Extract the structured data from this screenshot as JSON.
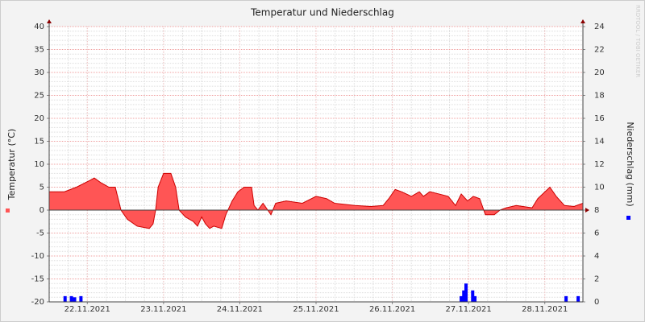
{
  "chart_data": {
    "type": "area_bar",
    "title": "Temperatur und Niederschlag",
    "ylabel": "Temperatur (°C)",
    "y2label": "Niederschlag (mm)",
    "watermark": "RRDTOOL / TOBI OETIKER",
    "xlim": [
      0,
      168
    ],
    "xticks": [
      {
        "value": 12,
        "label": "22.11.2021"
      },
      {
        "value": 36,
        "label": "23.11.2021"
      },
      {
        "value": 60,
        "label": "24.11.2021"
      },
      {
        "value": 84,
        "label": "25.11.2021"
      },
      {
        "value": 108,
        "label": "26.11.2021"
      },
      {
        "value": 132,
        "label": "27.11.2021"
      },
      {
        "value": 156,
        "label": "28.11.2021"
      }
    ],
    "ylim": [
      -20,
      40
    ],
    "yticks": [
      -20,
      -15,
      -10,
      -5,
      0,
      5,
      10,
      15,
      20,
      25,
      30,
      35,
      40
    ],
    "y2lim": [
      0,
      24
    ],
    "y2ticks": [
      0,
      2,
      4,
      6,
      8,
      10,
      12,
      14,
      16,
      18,
      20,
      22,
      24
    ],
    "grid": true,
    "series": [
      {
        "color": "#ff5555",
        "x": [
          0,
          4.8,
          8.6,
          12.9,
          14.2,
          16.2,
          18.8,
          20.8,
          22.6,
          24.6,
          27.7,
          31.5,
          32.7,
          33.5,
          34.3,
          36,
          38.3,
          39.8,
          40.9,
          42.9,
          45.4,
          46.7,
          48,
          49.2,
          50.5,
          51.8,
          54.3,
          55.6,
          57.6,
          59.4,
          61.4,
          63.7,
          64.5,
          65.7,
          67.3,
          68.8,
          69.8,
          71.3,
          74.6,
          79.7,
          84,
          87.3,
          89.8,
          96.2,
          101.3,
          105.1,
          106.9,
          108.9,
          110.9,
          114,
          116.5,
          117.8,
          119.8,
          122.8,
          125.6,
          127.9,
          129.7,
          131.7,
          133.5,
          135.5,
          137.3,
          140.1,
          141.9,
          143.9,
          147,
          152,
          153.8,
          157.6,
          159.6,
          162.2,
          165.2,
          168
        ],
        "values": [
          4,
          4,
          5,
          6.5,
          7,
          6,
          5,
          5,
          0,
          -2,
          -3.5,
          -4,
          -3,
          0,
          5,
          8,
          8,
          5,
          0,
          -1.5,
          -2.5,
          -3.5,
          -1.5,
          -3,
          -4,
          -3.5,
          -4,
          -1,
          2,
          4,
          5,
          5,
          1,
          0,
          1.5,
          0,
          -1,
          1.5,
          2,
          1.5,
          3,
          2.5,
          1.5,
          1,
          0.8,
          1,
          2.5,
          4.5,
          4,
          3,
          4,
          3,
          4,
          3.5,
          3,
          1,
          3.5,
          2,
          3,
          2.5,
          -1,
          -1,
          0,
          0.5,
          1,
          0.5,
          2.5,
          5,
          3,
          1,
          0.8,
          1.5
        ]
      },
      {
        "color": "#0000ff",
        "axis": "y2",
        "x": [
          5,
          7,
          8,
          10,
          129.7,
          130.5,
          131.2,
          133.3,
          134,
          162.7,
          166.5
        ],
        "values": [
          0.5,
          0.5,
          0.4,
          0.5,
          0.5,
          1,
          1.6,
          1,
          0.5,
          0.5,
          0.5
        ]
      }
    ]
  }
}
